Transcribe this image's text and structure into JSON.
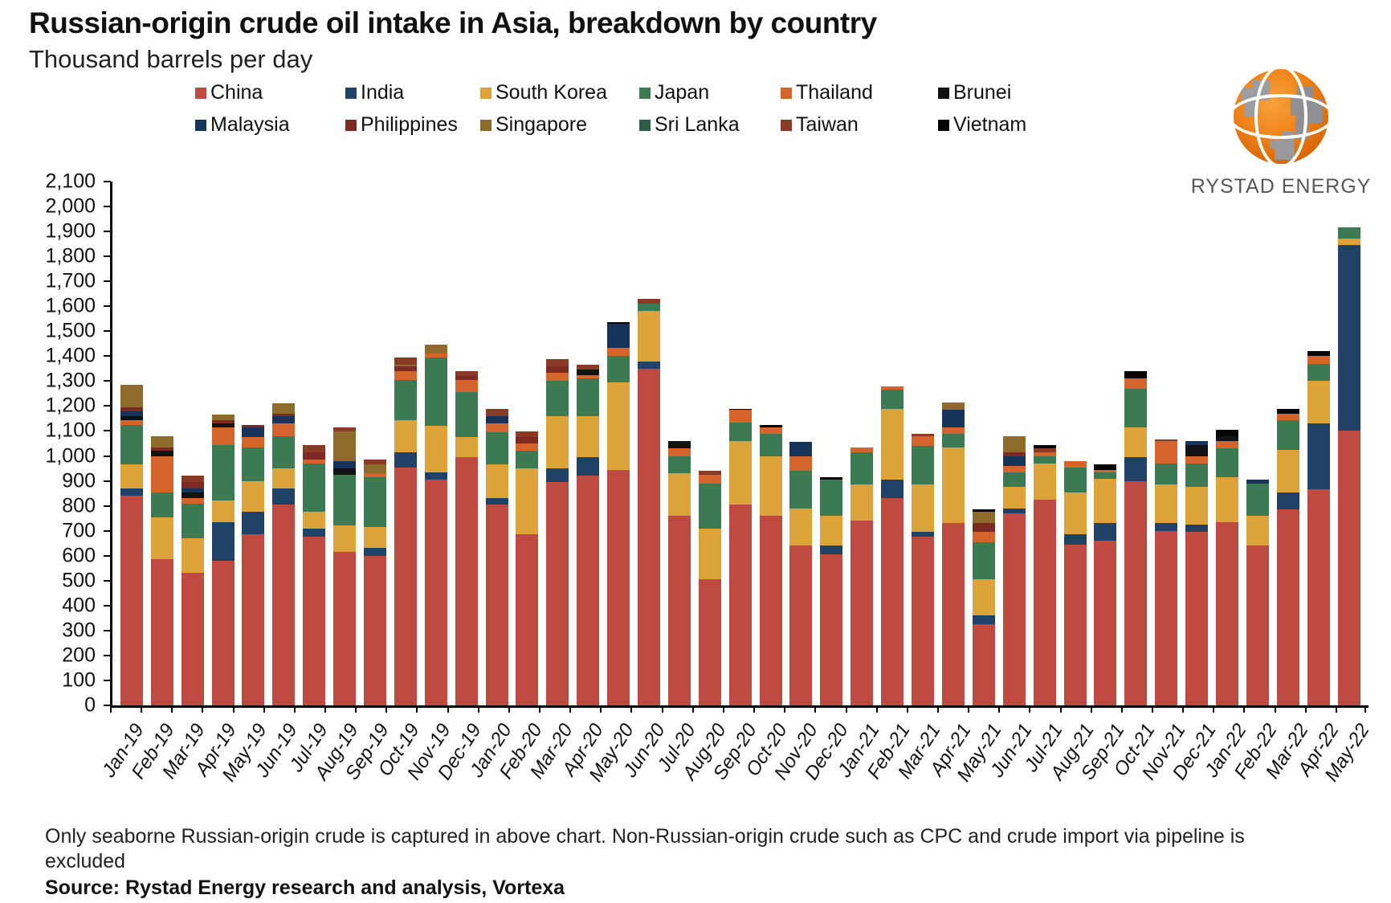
{
  "title": "Russian-origin crude oil intake in Asia, breakdown by country",
  "subtitle": "Thousand barrels per day",
  "logo": {
    "text": "RYSTAD ENERGY"
  },
  "footnote": "Only seaborne Russian-origin crude is captured in above chart. Non-Russian-origin crude such as CPC and crude import via pipeline is excluded",
  "source": "Source: Rystad Energy research and analysis,  Vortexa",
  "chart_data": {
    "type": "bar",
    "stacked": true,
    "title": "Russian-origin crude oil intake in Asia, breakdown by country",
    "subtitle_unit": "Thousand barrels per day",
    "xlabel": "",
    "ylabel": "",
    "ylim": [
      0,
      2100
    ],
    "ytick_step": 100,
    "grid": false,
    "legend_position": "top",
    "categories": [
      "Jan-19",
      "Feb-19",
      "Mar-19",
      "Apr-19",
      "May-19",
      "Jun-19",
      "Jul-19",
      "Aug-19",
      "Sep-19",
      "Oct-19",
      "Nov-19",
      "Dec-19",
      "Jan-20",
      "Feb-20",
      "Mar-20",
      "Apr-20",
      "May-20",
      "Jun-20",
      "Jul-20",
      "Aug-20",
      "Sep-20",
      "Oct-20",
      "Nov-20",
      "Dec-20",
      "Jan-21",
      "Feb-21",
      "Mar-21",
      "Apr-21",
      "May-21",
      "Jun-21",
      "Jul-21",
      "Aug-21",
      "Sep-21",
      "Oct-21",
      "Nov-21",
      "Dec-21",
      "Jan-22",
      "Feb-22",
      "Mar-22",
      "Apr-22",
      "May-22"
    ],
    "series": [
      {
        "name": "China",
        "color": "#BE4A42",
        "values": [
          840,
          585,
          530,
          580,
          685,
          805,
          675,
          615,
          600,
          955,
          905,
          995,
          805,
          685,
          895,
          920,
          945,
          1350,
          760,
          505,
          805,
          760,
          640,
          605,
          740,
          830,
          675,
          730,
          325,
          770,
          825,
          645,
          660,
          900,
          700,
          695,
          735,
          640,
          785,
          865,
          1100
        ]
      },
      {
        "name": "India",
        "color": "#1F4266",
        "values": [
          30,
          0,
          0,
          155,
          90,
          65,
          35,
          0,
          30,
          60,
          30,
          0,
          25,
          0,
          55,
          75,
          0,
          30,
          0,
          0,
          0,
          0,
          0,
          35,
          0,
          75,
          20,
          0,
          35,
          20,
          0,
          40,
          70,
          95,
          30,
          30,
          0,
          0,
          70,
          265,
          745
        ]
      },
      {
        "name": "South Korea",
        "color": "#DCA33B",
        "values": [
          95,
          170,
          140,
          85,
          125,
          80,
          65,
          105,
          85,
          130,
          185,
          80,
          135,
          265,
          210,
          165,
          350,
          200,
          170,
          205,
          255,
          240,
          150,
          120,
          145,
          285,
          190,
          305,
          145,
          85,
          145,
          170,
          180,
          120,
          155,
          150,
          180,
          120,
          170,
          170,
          25
        ]
      },
      {
        "name": "Japan",
        "color": "#3B7A52",
        "values": [
          160,
          100,
          140,
          225,
          135,
          130,
          195,
          205,
          200,
          160,
          275,
          180,
          130,
          70,
          140,
          150,
          105,
          30,
          70,
          180,
          75,
          90,
          150,
          145,
          130,
          75,
          155,
          55,
          150,
          60,
          30,
          100,
          25,
          155,
          85,
          95,
          115,
          130,
          120,
          70,
          45
        ]
      },
      {
        "name": "Thailand",
        "color": "#D5642C",
        "values": [
          20,
          145,
          20,
          70,
          40,
          50,
          15,
          0,
          15,
          35,
          15,
          50,
          35,
          30,
          35,
          15,
          35,
          0,
          30,
          35,
          50,
          25,
          60,
          0,
          20,
          15,
          40,
          25,
          40,
          25,
          15,
          25,
          10,
          40,
          90,
          30,
          30,
          0,
          25,
          30,
          0
        ]
      },
      {
        "name": "Brunei",
        "color": "#121212",
        "values": [
          15,
          20,
          25,
          15,
          0,
          0,
          0,
          25,
          0,
          0,
          0,
          0,
          0,
          0,
          0,
          20,
          0,
          0,
          30,
          0,
          0,
          0,
          0,
          0,
          0,
          0,
          0,
          0,
          0,
          0,
          0,
          0,
          0,
          0,
          0,
          45,
          20,
          0,
          0,
          0,
          0
        ]
      },
      {
        "name": "Malaysia",
        "color": "#16345A",
        "values": [
          20,
          0,
          15,
          0,
          40,
          30,
          0,
          30,
          0,
          0,
          0,
          0,
          30,
          0,
          0,
          0,
          95,
          0,
          0,
          0,
          0,
          0,
          55,
          0,
          0,
          0,
          0,
          70,
          0,
          40,
          0,
          0,
          0,
          0,
          0,
          15,
          0,
          15,
          0,
          0,
          0
        ]
      },
      {
        "name": "Philippines",
        "color": "#7D2A23",
        "values": [
          15,
          15,
          25,
          15,
          10,
          10,
          30,
          0,
          0,
          20,
          0,
          15,
          0,
          25,
          25,
          0,
          0,
          0,
          0,
          0,
          0,
          0,
          0,
          0,
          0,
          0,
          0,
          0,
          35,
          15,
          0,
          0,
          0,
          0,
          0,
          0,
          0,
          0,
          0,
          0,
          0
        ]
      },
      {
        "name": "Singapore",
        "color": "#8E6B2B",
        "values": [
          90,
          45,
          0,
          20,
          0,
          40,
          0,
          120,
          35,
          5,
          35,
          0,
          0,
          0,
          0,
          0,
          0,
          0,
          0,
          0,
          0,
          0,
          0,
          0,
          0,
          0,
          0,
          30,
          45,
          65,
          0,
          0,
          0,
          0,
          0,
          0,
          0,
          0,
          0,
          0,
          0
        ]
      },
      {
        "name": "Sri Lanka",
        "color": "#2F5C45",
        "values": [
          0,
          0,
          0,
          0,
          0,
          0,
          0,
          0,
          0,
          0,
          0,
          0,
          0,
          0,
          0,
          0,
          0,
          0,
          0,
          0,
          0,
          0,
          0,
          0,
          0,
          0,
          0,
          0,
          0,
          0,
          0,
          0,
          0,
          0,
          0,
          0,
          0,
          0,
          0,
          0,
          0
        ]
      },
      {
        "name": "Taiwan",
        "color": "#8A3B25",
        "values": [
          0,
          0,
          25,
          0,
          0,
          0,
          30,
          15,
          20,
          30,
          0,
          20,
          30,
          25,
          30,
          20,
          0,
          20,
          0,
          15,
          0,
          0,
          0,
          0,
          0,
          0,
          10,
          0,
          0,
          0,
          15,
          0,
          0,
          0,
          5,
          0,
          0,
          0,
          0,
          0,
          0
        ]
      },
      {
        "name": "Vietnam",
        "color": "#050505",
        "values": [
          0,
          0,
          0,
          0,
          0,
          0,
          0,
          0,
          0,
          0,
          0,
          0,
          0,
          0,
          0,
          0,
          5,
          0,
          0,
          0,
          5,
          10,
          0,
          10,
          0,
          0,
          0,
          0,
          10,
          0,
          15,
          0,
          20,
          30,
          0,
          0,
          25,
          0,
          20,
          20,
          0
        ]
      }
    ]
  }
}
